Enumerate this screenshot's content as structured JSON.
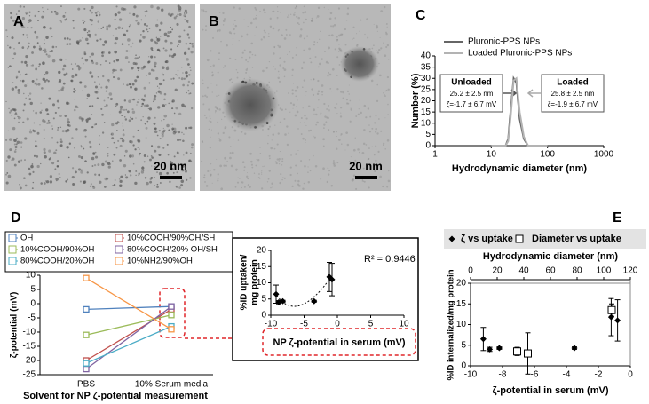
{
  "chart_data": [
    {
      "type": "image",
      "label": "A",
      "scale_bar": "20 nm"
    },
    {
      "type": "image",
      "label": "B",
      "scale_bar": "20 nm"
    },
    {
      "type": "line",
      "label": "C",
      "x_label": "Hydrodynamic diameter (nm)",
      "y_label": "Number (%)",
      "x": [
        10,
        15,
        18,
        20,
        22,
        25,
        28,
        32,
        38,
        45,
        60,
        100
      ],
      "series": [
        {
          "name": "Pluronic-PPS NPs",
          "color": "#666666",
          "values": [
            0,
            0,
            0,
            3,
            15,
            30,
            28,
            12,
            3,
            0,
            0,
            0
          ]
        },
        {
          "name": "Loaded Pluronic-PPS NPs",
          "color": "#b3b3b3",
          "values": [
            0,
            0,
            0,
            2,
            12,
            29,
            30,
            15,
            4,
            0,
            0,
            0
          ]
        }
      ],
      "xlim": [
        1,
        1000
      ],
      "xticks": [
        1,
        10,
        100,
        1000
      ],
      "log_x": true,
      "ylim": [
        0,
        40
      ],
      "yticks": [
        0,
        5,
        10,
        15,
        20,
        25,
        30,
        35,
        40
      ],
      "annotations": [
        {
          "title": "Unloaded",
          "size": "25.2 ± 2.5 nm",
          "zeta": "ζ=-1.7 ± 6.7 mV"
        },
        {
          "title": "Loaded",
          "size": "25.8 ± 2.5 nm",
          "zeta": "ζ=-1.9 ± 6.7 mV"
        }
      ]
    },
    {
      "type": "line",
      "label": "D",
      "x_label": "Solvent for NP ζ-potential measurement",
      "y_label": "ζ-potential (mV)",
      "categories": [
        "PBS",
        "10% Serum media"
      ],
      "series": [
        {
          "name": "OH",
          "color": "#4f81bd",
          "values": [
            -2,
            -1
          ]
        },
        {
          "name": "10%COOH/90%OH/SH",
          "color": "#c0504d",
          "values": [
            -20,
            -2
          ]
        },
        {
          "name": "10%COOH/90%OH",
          "color": "#9bbb59",
          "values": [
            -11,
            -4
          ]
        },
        {
          "name": "80%COOH/20% OH/SH",
          "color": "#8064a2",
          "values": [
            -23,
            -1
          ]
        },
        {
          "name": "80%COOH/20%OH",
          "color": "#4bacc6",
          "values": [
            -21,
            -8
          ]
        },
        {
          "name": "10%NH2/90%OH",
          "color": "#f79646",
          "values": [
            9,
            -9
          ]
        }
      ],
      "ylim": [
        -25,
        10
      ],
      "yticks": [
        -25,
        -20,
        -15,
        -10,
        -5,
        0,
        5,
        10
      ]
    },
    {
      "type": "scatter",
      "x_label": "NP ζ-potential in serum (mV)",
      "y_label": [
        "%ID uptaken/",
        "mg protein"
      ],
      "annotation": "R² = 0.9446",
      "series": [
        {
          "color": "#000000",
          "x": [
            -9.2,
            -8.8,
            -8.2,
            -3.5,
            -1.2,
            -0.8
          ],
          "values": [
            6.5,
            4,
            4.3,
            4.3,
            11.8,
            11
          ],
          "errors": [
            2.8,
            0.5,
            0.3,
            0.3,
            4.5,
            5
          ]
        }
      ],
      "xlim": [
        -10,
        10
      ],
      "xticks": [
        -10,
        -5,
        0,
        5,
        10
      ],
      "ylim": [
        0,
        20
      ],
      "yticks": [
        0,
        5,
        10,
        15,
        20
      ]
    },
    {
      "type": "scatter",
      "label": "E",
      "x_label": "ζ-potential in serum (mV)",
      "x2_label": "Hydrodynamic diameter (nm)",
      "y_label": "%ID internalized/mg protein",
      "series": [
        {
          "name": "ζ vs uptake",
          "color": "#000000",
          "marker": "diamond",
          "x": [
            -9.2,
            -8.8,
            -8.2,
            -3.5,
            -1.2,
            -0.8
          ],
          "values": [
            6.5,
            4,
            4.3,
            4.3,
            11.8,
            11
          ],
          "errors": [
            2.8,
            0.5,
            0.3,
            0.3,
            4.5,
            5
          ]
        },
        {
          "name": "Diameter vs uptake",
          "color": "#000000",
          "marker": "square",
          "axis": "x2",
          "x": [
            35,
            43,
            106
          ],
          "values": [
            3.5,
            3,
            13.5
          ],
          "errors": [
            1,
            5,
            1.5
          ]
        }
      ],
      "xlim": [
        -10,
        0
      ],
      "xticks": [
        -10,
        -8,
        -6,
        -4,
        -2,
        0
      ],
      "x2lim": [
        0,
        120
      ],
      "x2ticks": [
        0,
        20,
        40,
        60,
        80,
        100,
        120
      ],
      "ylim": [
        0,
        20
      ],
      "yticks": [
        0,
        5,
        10,
        15,
        20
      ]
    }
  ]
}
